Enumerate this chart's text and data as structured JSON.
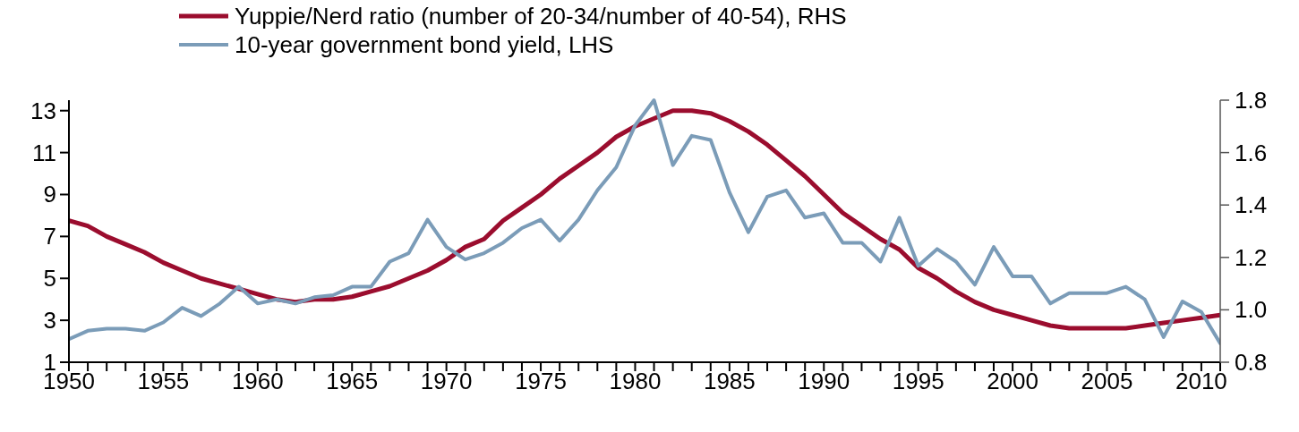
{
  "chart_data": {
    "type": "line",
    "x": [
      1950,
      1951,
      1952,
      1953,
      1954,
      1955,
      1956,
      1957,
      1958,
      1959,
      1960,
      1961,
      1962,
      1963,
      1964,
      1965,
      1966,
      1967,
      1968,
      1969,
      1970,
      1971,
      1972,
      1973,
      1974,
      1975,
      1976,
      1977,
      1978,
      1979,
      1980,
      1981,
      1982,
      1983,
      1984,
      1985,
      1986,
      1987,
      1988,
      1989,
      1990,
      1991,
      1992,
      1993,
      1994,
      1995,
      1996,
      1997,
      1998,
      1999,
      2000,
      2001,
      2002,
      2003,
      2004,
      2005,
      2006,
      2007,
      2008,
      2009,
      2010,
      2011
    ],
    "series": [
      {
        "name": "Yuppie/Nerd ratio (number of 20-34/number of 40-54), RHS",
        "color": "#9b0d2e",
        "axis": "y2",
        "values": [
          1.34,
          1.32,
          1.28,
          1.25,
          1.22,
          1.18,
          1.15,
          1.12,
          1.1,
          1.08,
          1.06,
          1.04,
          1.03,
          1.04,
          1.04,
          1.05,
          1.07,
          1.09,
          1.12,
          1.15,
          1.19,
          1.24,
          1.27,
          1.34,
          1.39,
          1.44,
          1.5,
          1.55,
          1.6,
          1.66,
          1.7,
          1.73,
          1.76,
          1.76,
          1.75,
          1.72,
          1.68,
          1.63,
          1.57,
          1.51,
          1.44,
          1.37,
          1.32,
          1.27,
          1.23,
          1.16,
          1.12,
          1.07,
          1.03,
          1.0,
          0.98,
          0.96,
          0.94,
          0.93,
          0.93,
          0.93,
          0.93,
          0.94,
          0.95,
          0.96,
          0.97,
          0.98
        ]
      },
      {
        "name": "10-year government bond yield, LHS",
        "color": "#7b9cb8",
        "values": [
          2.1,
          2.5,
          2.6,
          2.6,
          2.5,
          2.9,
          3.6,
          3.2,
          3.8,
          4.6,
          3.8,
          4.0,
          3.8,
          4.1,
          4.2,
          4.6,
          4.6,
          5.8,
          6.2,
          7.8,
          6.5,
          5.9,
          6.2,
          6.7,
          7.4,
          7.8,
          6.8,
          7.8,
          9.2,
          10.3,
          12.3,
          13.5,
          10.4,
          11.8,
          11.6,
          9.1,
          7.2,
          8.9,
          9.2,
          7.9,
          8.1,
          6.7,
          6.7,
          5.8,
          7.9,
          5.6,
          6.4,
          5.8,
          4.7,
          6.5,
          5.1,
          5.1,
          3.8,
          4.3,
          4.3,
          4.3,
          4.6,
          4.0,
          2.2,
          3.9,
          3.4,
          1.9
        ]
      }
    ],
    "xlim": [
      1950,
      2011
    ],
    "xticks": [
      1950,
      {
        "value": 1951,
        "label": null
      },
      {
        "value": 1952,
        "label": null
      },
      {
        "value": 1953,
        "label": null
      },
      {
        "value": 1954,
        "label": null
      },
      1955,
      {
        "value": 1956,
        "label": null
      },
      {
        "value": 1957,
        "label": null
      },
      {
        "value": 1958,
        "label": null
      },
      {
        "value": 1959,
        "label": null
      },
      1960,
      {
        "value": 1961,
        "label": null
      },
      {
        "value": 1962,
        "label": null
      },
      {
        "value": 1963,
        "label": null
      },
      {
        "value": 1964,
        "label": null
      },
      1965,
      {
        "value": 1966,
        "label": null
      },
      {
        "value": 1967,
        "label": null
      },
      {
        "value": 1968,
        "label": null
      },
      {
        "value": 1969,
        "label": null
      },
      1970,
      {
        "value": 1971,
        "label": null
      },
      {
        "value": 1972,
        "label": null
      },
      {
        "value": 1973,
        "label": null
      },
      {
        "value": 1974,
        "label": null
      },
      1975,
      {
        "value": 1976,
        "label": null
      },
      {
        "value": 1977,
        "label": null
      },
      {
        "value": 1978,
        "label": null
      },
      {
        "value": 1979,
        "label": null
      },
      1980,
      {
        "value": 1981,
        "label": null
      },
      {
        "value": 1982,
        "label": null
      },
      {
        "value": 1983,
        "label": null
      },
      {
        "value": 1984,
        "label": null
      },
      1985,
      {
        "value": 1986,
        "label": null
      },
      {
        "value": 1987,
        "label": null
      },
      {
        "value": 1988,
        "label": null
      },
      {
        "value": 1989,
        "label": null
      },
      1990,
      {
        "value": 1991,
        "label": null
      },
      {
        "value": 1992,
        "label": null
      },
      {
        "value": 1993,
        "label": null
      },
      {
        "value": 1994,
        "label": null
      },
      1995,
      {
        "value": 1996,
        "label": null
      },
      {
        "value": 1997,
        "label": null
      },
      {
        "value": 1998,
        "label": null
      },
      {
        "value": 1999,
        "label": null
      },
      2000,
      {
        "value": 2001,
        "label": null
      },
      {
        "value": 2002,
        "label": null
      },
      {
        "value": 2003,
        "label": null
      },
      {
        "value": 2004,
        "label": null
      },
      2005,
      {
        "value": 2006,
        "label": null
      },
      {
        "value": 2007,
        "label": null
      },
      {
        "value": 2008,
        "label": null
      },
      {
        "value": 2009,
        "label": null
      },
      2010,
      {
        "value": 2011,
        "label": null
      }
    ],
    "ylim": [
      1,
      13.5
    ],
    "yticks": [
      1,
      3,
      5,
      7,
      9,
      11,
      13
    ],
    "y2lim": [
      0.8,
      1.8
    ],
    "y2ticks": [
      {
        "value": 0.8,
        "label": "0.8"
      },
      {
        "value": 1.0,
        "label": "1.0"
      },
      {
        "value": 1.2,
        "label": "1.2"
      },
      {
        "value": 1.4,
        "label": "1.4"
      },
      {
        "value": 1.6,
        "label": "1.6"
      },
      {
        "value": 1.8,
        "label": "1.8"
      }
    ],
    "legend": "top",
    "grid": false
  }
}
